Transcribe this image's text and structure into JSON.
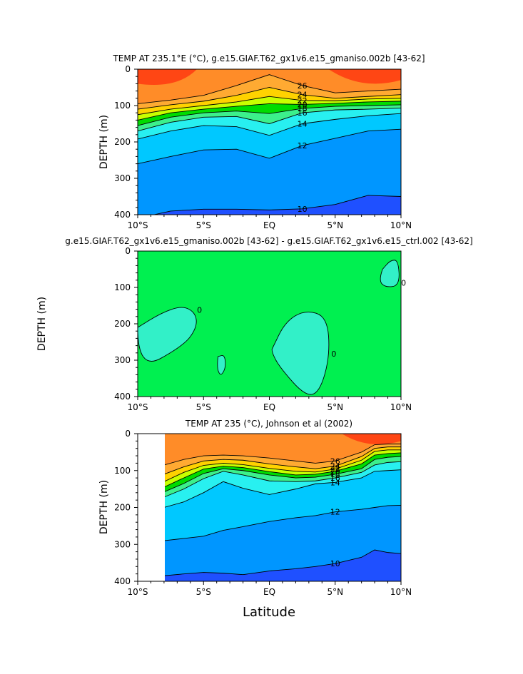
{
  "figure": {
    "xlabel": "Latitude",
    "x_ticks": [
      "10°S",
      "5°S",
      "EQ",
      "5°N",
      "10°N"
    ],
    "y_ticks": [
      "0",
      "100",
      "200",
      "300",
      "400"
    ]
  },
  "colors": {
    "t_lt10": "#1f50ff",
    "t_10_12": "#0096ff",
    "t_12_14": "#00c8ff",
    "t_14_16": "#28f0f0",
    "t_16_18": "#3cf08c",
    "t_18_20": "#00dc00",
    "t_20_22": "#c8ff00",
    "t_22_24": "#ffd200",
    "t_24_26": "#ffaa32",
    "t_gt26": "#ff8c28",
    "t_hot": "#ff4614",
    "diff_zero": "#00f050",
    "diff_neg": "#32f0c8"
  },
  "chart_data": [
    {
      "type": "contour",
      "title": "TEMP AT 235.1°E (°C), g.e15.GIAF.T62_gx1v6.e15_gmaniso.002b [43-62]",
      "xlabel": "",
      "ylabel": "DEPTH (m)",
      "xlim": [
        -10,
        10
      ],
      "ylim": [
        400,
        0
      ],
      "units": "°C",
      "contour_levels": [
        10,
        12,
        14,
        16,
        18,
        20,
        22,
        24,
        26
      ],
      "isotherm_depths_m": {
        "x": [
          -10,
          -7.5,
          -5,
          -2.5,
          0,
          2.5,
          5,
          7.5,
          10
        ],
        "10": [
          null,
          390,
          385,
          385,
          387,
          384,
          372,
          347,
          350
        ],
        "12": [
          260,
          240,
          222,
          220,
          245,
          210,
          190,
          170,
          165
        ],
        "14": [
          192,
          170,
          155,
          158,
          182,
          150,
          138,
          128,
          122
        ],
        "16": [
          170,
          146,
          132,
          130,
          150,
          120,
          112,
          110,
          107
        ],
        "18": [
          155,
          132,
          120,
          115,
          122,
          108,
          102,
          100,
          98
        ],
        "20": [
          140,
          120,
          110,
          102,
          95,
          97,
          94,
          90,
          88
        ],
        "22": [
          125,
          110,
          100,
          90,
          75,
          86,
          87,
          82,
          80
        ],
        "24": [
          110,
          98,
          88,
          72,
          50,
          70,
          80,
          75,
          70
        ],
        "26": [
          95,
          85,
          72,
          45,
          15,
          45,
          65,
          60,
          55
        ]
      },
      "labels": [
        "26",
        "24",
        "22",
        "20",
        "18",
        "16",
        "14",
        "12",
        "10"
      ]
    },
    {
      "type": "contour",
      "title": "g.e15.GIAF.T62_gx1v6.e15_gmaniso.002b [43-62] - g.e15.GIAF.T62_gx1v6.e15_ctrl.002 [43-62]",
      "xlabel": "",
      "ylabel": "DEPTH (m)",
      "xlim": [
        -10,
        10
      ],
      "ylim": [
        400,
        0
      ],
      "contour_levels": [
        0
      ],
      "labels": [
        "0"
      ],
      "negative_regions": [
        {
          "lat": [
            -10,
            -8.2,
            -6.6,
            -5.6,
            -5.5,
            -6.5,
            -10
          ],
          "depth": [
            210,
            170,
            150,
            170,
            210,
            260,
            330
          ]
        },
        {
          "lat": [
            -3.9,
            -3.4,
            -3.3,
            -3.7,
            -4.0
          ],
          "depth": [
            290,
            285,
            320,
            345,
            320
          ]
        },
        {
          "lat": [
            0.2,
            1.2,
            2.7,
            4.4,
            4.6,
            3.8,
            2.7,
            0.8,
            0.2
          ],
          "depth": [
            270,
            195,
            162,
            180,
            290,
            390,
            398,
            320,
            280
          ]
        },
        {
          "lat": [
            8.6,
            9.2,
            9.8,
            9.9,
            8.8,
            8.3
          ],
          "depth": [
            50,
            25,
            25,
            95,
            100,
            80
          ]
        }
      ]
    },
    {
      "type": "contour",
      "title": "TEMP AT 235 (°C), Johnson et al (2002)",
      "xlabel": "Latitude",
      "ylabel": "DEPTH (m)",
      "xlim": [
        -10,
        10
      ],
      "ylim": [
        400,
        0
      ],
      "units": "°C",
      "data_start_lat": -8,
      "contour_levels": [
        10,
        12,
        14,
        16,
        18,
        20,
        22,
        24,
        26
      ],
      "isotherm_depths_m": {
        "x": [
          -8,
          -6.5,
          -5,
          -3.5,
          -2,
          0,
          2,
          3.5,
          5,
          7,
          8,
          9,
          10
        ],
        "10": [
          385,
          380,
          376,
          378,
          382,
          372,
          366,
          360,
          352,
          335,
          315,
          322,
          325
        ],
        "12": [
          290,
          284,
          278,
          262,
          252,
          238,
          228,
          222,
          212,
          205,
          200,
          195,
          194
        ],
        "14": [
          200,
          185,
          160,
          130,
          148,
          165,
          150,
          136,
          132,
          120,
          102,
          100,
          98
        ],
        "16": [
          172,
          150,
          122,
          102,
          112,
          128,
          130,
          128,
          120,
          105,
          85,
          78,
          76
        ],
        "18": [
          158,
          135,
          108,
          95,
          100,
          112,
          120,
          118,
          110,
          95,
          70,
          64,
          62
        ],
        "20": [
          145,
          120,
          96,
          88,
          92,
          103,
          112,
          110,
          102,
          82,
          58,
          54,
          52
        ],
        "22": [
          130,
          105,
          86,
          80,
          84,
          94,
          102,
          104,
          96,
          72,
          48,
          44,
          44
        ],
        "24": [
          110,
          90,
          74,
          70,
          72,
          82,
          90,
          95,
          88,
          62,
          40,
          36,
          36
        ],
        "26": [
          85,
          70,
          60,
          58,
          60,
          66,
          74,
          80,
          74,
          50,
          30,
          28,
          28
        ]
      },
      "labels": [
        "26",
        "24",
        "22",
        "20",
        "18",
        "16",
        "14",
        "12",
        "10"
      ]
    }
  ]
}
